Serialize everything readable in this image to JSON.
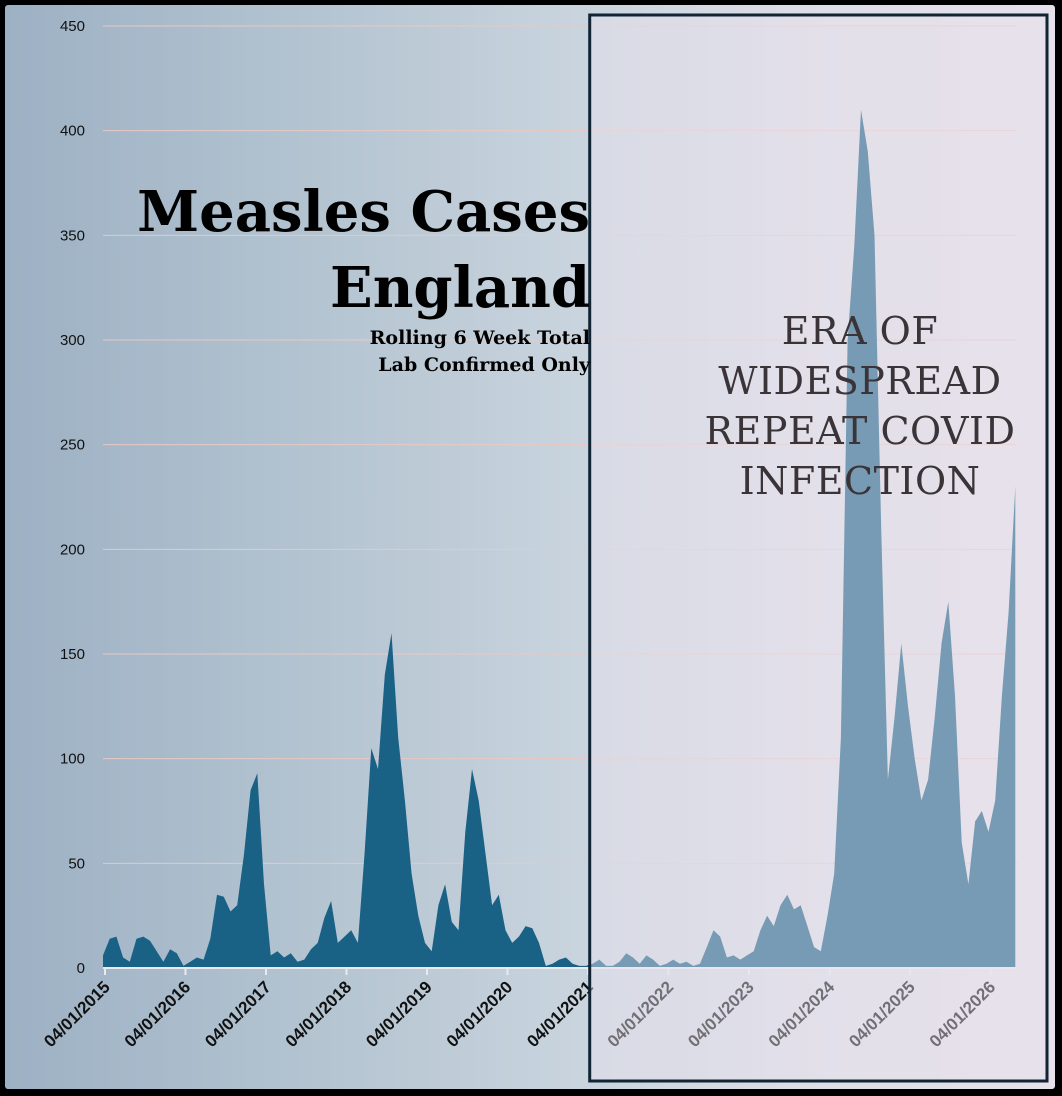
{
  "chart_data": {
    "type": "area",
    "title": [
      "Measles Cases",
      "England"
    ],
    "subtitle": [
      "Rolling 6 Week Total",
      "Lab Confirmed Only"
    ],
    "annotation": [
      "ERA OF",
      "WIDESPREAD",
      "REPEAT COVID",
      "INFECTION"
    ],
    "xlabel": "",
    "ylabel": "",
    "ylim": [
      0,
      450
    ],
    "yticks": [
      0,
      50,
      100,
      150,
      200,
      250,
      300,
      350,
      400,
      450
    ],
    "xtick_labels": [
      "04/01/2015",
      "04/01/2016",
      "04/01/2017",
      "04/01/2018",
      "04/01/2019",
      "04/01/2020",
      "04/01/2021",
      "04/01/2022",
      "04/01/2023",
      "04/01/2024",
      "04/01/2025",
      "04/01/2026"
    ],
    "grid": true,
    "highlight_start": "2021-02",
    "colors": {
      "area": "#1a6186",
      "grid": "#e8c9c2",
      "box": "#102433"
    },
    "series": [
      {
        "x": [
          "2015-01",
          "2015-02",
          "2015-03",
          "2015-04",
          "2015-05",
          "2015-06",
          "2015-07",
          "2015-08",
          "2015-09",
          "2015-10",
          "2015-11",
          "2015-12",
          "2016-01",
          "2016-02",
          "2016-03",
          "2016-04",
          "2016-05",
          "2016-06",
          "2016-07",
          "2016-08",
          "2016-09",
          "2016-10",
          "2016-11",
          "2016-12",
          "2017-01",
          "2017-02",
          "2017-03",
          "2017-04",
          "2017-05",
          "2017-06",
          "2017-07",
          "2017-08",
          "2017-09",
          "2017-10",
          "2017-11",
          "2017-12",
          "2018-01",
          "2018-02",
          "2018-03",
          "2018-04",
          "2018-05",
          "2018-06",
          "2018-07",
          "2018-08",
          "2018-09",
          "2018-10",
          "2018-11",
          "2018-12",
          "2019-01",
          "2019-02",
          "2019-03",
          "2019-04",
          "2019-05",
          "2019-06",
          "2019-07",
          "2019-08",
          "2019-09",
          "2019-10",
          "2019-11",
          "2019-12",
          "2020-01",
          "2020-02",
          "2020-03",
          "2020-04",
          "2020-05",
          "2020-06",
          "2020-07",
          "2020-08",
          "2020-09",
          "2020-10",
          "2020-11",
          "2020-12",
          "2021-01",
          "2021-02",
          "2021-03",
          "2021-04",
          "2021-05",
          "2021-06",
          "2021-07",
          "2021-08",
          "2021-09",
          "2021-10",
          "2021-11",
          "2021-12",
          "2022-01",
          "2022-02",
          "2022-03",
          "2022-04",
          "2022-05",
          "2022-06",
          "2022-07",
          "2022-08",
          "2022-09",
          "2022-10",
          "2022-11",
          "2022-12",
          "2023-01",
          "2023-02",
          "2023-03",
          "2023-04",
          "2023-05",
          "2023-06",
          "2023-07",
          "2023-08",
          "2023-09",
          "2023-10",
          "2023-11",
          "2023-12",
          "2024-01",
          "2024-02",
          "2024-03",
          "2024-04",
          "2024-05",
          "2024-06",
          "2024-07",
          "2024-08",
          "2024-09",
          "2024-10",
          "2024-11",
          "2024-12",
          "2025-01",
          "2025-02",
          "2025-03",
          "2025-04",
          "2025-05",
          "2025-06",
          "2025-07",
          "2025-08",
          "2025-09",
          "2025-10",
          "2025-11",
          "2025-12",
          "2026-01",
          "2026-02",
          "2026-03",
          "2026-04",
          "2026-05"
        ],
        "values": [
          6,
          14,
          15,
          5,
          3,
          14,
          15,
          13,
          8,
          3,
          9,
          7,
          1,
          3,
          5,
          4,
          14,
          35,
          34,
          27,
          30,
          54,
          85,
          93,
          40,
          6,
          8,
          5,
          7,
          3,
          4,
          9,
          12,
          24,
          32,
          12,
          15,
          18,
          12,
          55,
          105,
          95,
          140,
          160,
          110,
          80,
          45,
          25,
          12,
          8,
          30,
          40,
          22,
          18,
          65,
          95,
          80,
          55,
          30,
          35,
          18,
          12,
          15,
          20,
          19,
          12,
          1,
          2,
          4,
          5,
          2,
          1,
          1,
          2,
          4,
          1,
          1,
          3,
          7,
          5,
          2,
          6,
          4,
          1,
          2,
          4,
          2,
          3,
          1,
          2,
          10,
          18,
          15,
          5,
          6,
          4,
          6,
          8,
          18,
          25,
          20,
          30,
          35,
          28,
          30,
          20,
          10,
          8,
          25,
          45,
          110,
          300,
          345,
          410,
          390,
          350,
          210,
          90,
          120,
          155,
          125,
          100,
          80,
          90,
          120,
          155,
          175,
          130,
          60,
          40,
          70,
          75,
          65,
          80,
          130,
          170,
          230
        ]
      }
    ]
  }
}
